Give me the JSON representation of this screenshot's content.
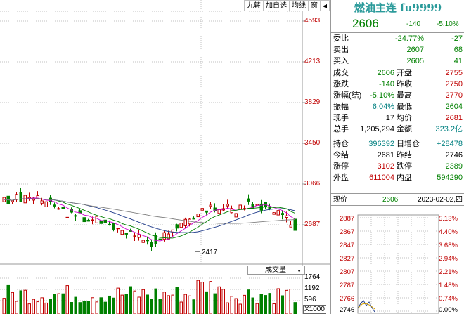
{
  "toolbar": {
    "btn1": "九转",
    "btn2": "加自选",
    "btn3": "均线",
    "btn4": "窗",
    "arrow": "◀"
  },
  "price_axis": [
    "4593",
    "4213",
    "3829",
    "3450",
    "3066",
    "2687"
  ],
  "annotation_low": "2417",
  "volume_tab": "成交量",
  "volume_axis": [
    "1764",
    "1192",
    "596"
  ],
  "volume_unit": "X1000",
  "quote": {
    "title": "燃油主连 fu9999",
    "last": "2606",
    "change": "-140",
    "change_pct": "-5.10%",
    "rows_top": [
      {
        "l": "委比",
        "v1": "-24.77%",
        "v2": "-27"
      },
      {
        "l": "卖出",
        "v1": "2607",
        "v2": "68"
      },
      {
        "l": "买入",
        "v1": "2605",
        "v2": "41"
      }
    ],
    "rows_mid": [
      {
        "l": "成交",
        "v1": "2606",
        "l2": "开盘",
        "v2": "2755"
      },
      {
        "l": "涨跌",
        "v1": "-140",
        "l2": "昨收",
        "v2": "2750"
      },
      {
        "l": "涨幅(结)",
        "v1": "-5.10%",
        "l2": "最高",
        "v2": "2770"
      },
      {
        "l": "振幅",
        "v1": "6.04%",
        "l2": "最低",
        "v2": "2604"
      },
      {
        "l": "现手",
        "v1": "17",
        "l2": "均价",
        "v2": "2681"
      },
      {
        "l": "总手",
        "v1": "1,205,294",
        "l2": "金额",
        "v2": "323.2亿"
      }
    ],
    "rows_bottom": [
      {
        "l": "持仓",
        "v1": "396392",
        "l2": "日增仓",
        "v2": "+28478"
      },
      {
        "l": "今结",
        "v1": "2681",
        "l2": "昨结",
        "v2": "2746"
      },
      {
        "l": "涨停",
        "v1": "3102",
        "l2": "跌停",
        "v2": "2389"
      },
      {
        "l": "外盘",
        "v1": "611004",
        "l2": "内盘",
        "v2": "594290"
      }
    ],
    "current_label": "现价",
    "current_value": "2606",
    "date": "2023-02-02,四"
  },
  "intraday_left": [
    "2887",
    "2867",
    "2847",
    "2827",
    "2807",
    "2787",
    "2766",
    "2746"
  ],
  "intraday_right": [
    "5.13%",
    "4.40%",
    "3.68%",
    "2.94%",
    "2.21%",
    "1.48%",
    "0.74%",
    "0.00%"
  ],
  "colors": {
    "up": "#c00000",
    "down": "#008000",
    "teal": "#2a9a9a",
    "grid": "#c0c0c0"
  }
}
